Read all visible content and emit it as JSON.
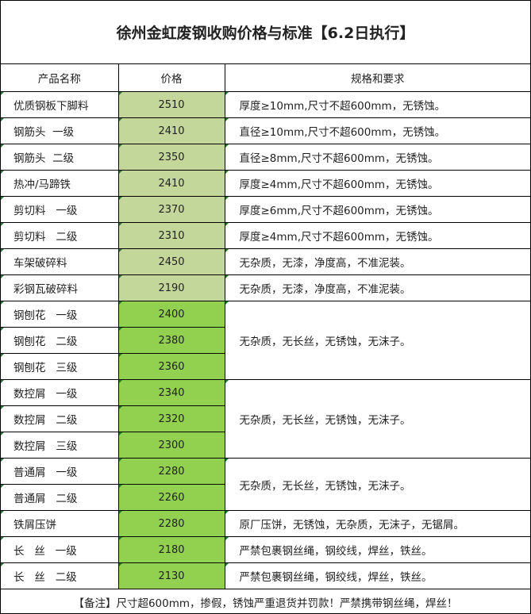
{
  "title": "徐州金虹废钢收购价格与标准【6.2日执行】",
  "headers": [
    "产品名称",
    "价格",
    "规格和要求"
  ],
  "colors": {
    "light_green": "#c4d79b",
    "bright_green": "#92d050"
  },
  "rows": [
    {
      "name": "优质钢板下脚料",
      "price": "2510",
      "spec": "厚度≥10mm,尺寸不超600mm，无锈蚀。",
      "fill": "light_green"
    },
    {
      "name": "钢筋头  一级",
      "price": "2410",
      "spec": "直径≥10mm,尺寸不超600mm，无锈蚀。",
      "fill": "light_green"
    },
    {
      "name": "钢筋头  二级",
      "price": "2350",
      "spec": "直径≥8mm,尺寸不超600mm，无锈蚀。",
      "fill": "light_green"
    },
    {
      "name": "热冲/马蹄铁",
      "price": "2410",
      "spec": "厚度≥4mm,尺寸不超600mm，无锈蚀。",
      "fill": "light_green"
    },
    {
      "name": "剪切料   一级",
      "price": "2370",
      "spec": "厚度≥6mm,尺寸不超600mm，无锈蚀。",
      "fill": "light_green"
    },
    {
      "name": "剪切料   二级",
      "price": "2310",
      "spec": "厚度≥4mm,尺寸不超600mm，无锈蚀。",
      "fill": "light_green"
    },
    {
      "name": "车架破碎料",
      "price": "2450",
      "spec": "无杂质，无漆，净度高，不准泥装。",
      "fill": "light_green"
    },
    {
      "name": "彩钢瓦破碎料",
      "price": "2190",
      "spec": "无杂质，无漆，净度高，不准泥装。",
      "fill": "light_green"
    },
    {
      "name": "钢刨花   一级",
      "price": "2400",
      "spec": "无杂质，无长丝，无锈蚀，无沫子。",
      "span": 3,
      "fill": "bright_green"
    },
    {
      "name": "钢刨花   二级",
      "price": "2380",
      "fill": "bright_green"
    },
    {
      "name": "钢刨花   三级",
      "price": "2360",
      "fill": "bright_green"
    },
    {
      "name": "数控屑   一级",
      "price": "2340",
      "spec": "无杂质，无长丝，无锈蚀，无沫子。",
      "span": 3,
      "fill": "bright_green"
    },
    {
      "name": "数控屑   二级",
      "price": "2320",
      "fill": "bright_green"
    },
    {
      "name": "数控屑   三级",
      "price": "2300",
      "fill": "bright_green"
    },
    {
      "name": "普通屑   一级",
      "price": "2280",
      "spec": "无杂质，无长丝，无锈蚀，无沫子。",
      "span": 2,
      "fill": "bright_green"
    },
    {
      "name": "普通屑   二级",
      "price": "2260",
      "fill": "bright_green"
    },
    {
      "name": "铁屑压饼",
      "price": "2280",
      "spec": "原厂压饼，无锈蚀，无杂质，无沫子，无锯屑。",
      "fill": "bright_green"
    },
    {
      "name": "长   丝   一级",
      "price": "2180",
      "spec": "严禁包裹钢丝绳，钢绞线，焊丝，铁丝。",
      "fill": "bright_green"
    },
    {
      "name": "长   丝   二级",
      "price": "2130",
      "spec": "严禁包裹钢丝绳，钢绞线，焊丝，铁丝。",
      "fill": "bright_green"
    }
  ],
  "footer": "【备注】尺寸超600mm，掺假，锈蚀严重退货并罚款！严禁携带钢丝绳，焊丝！"
}
